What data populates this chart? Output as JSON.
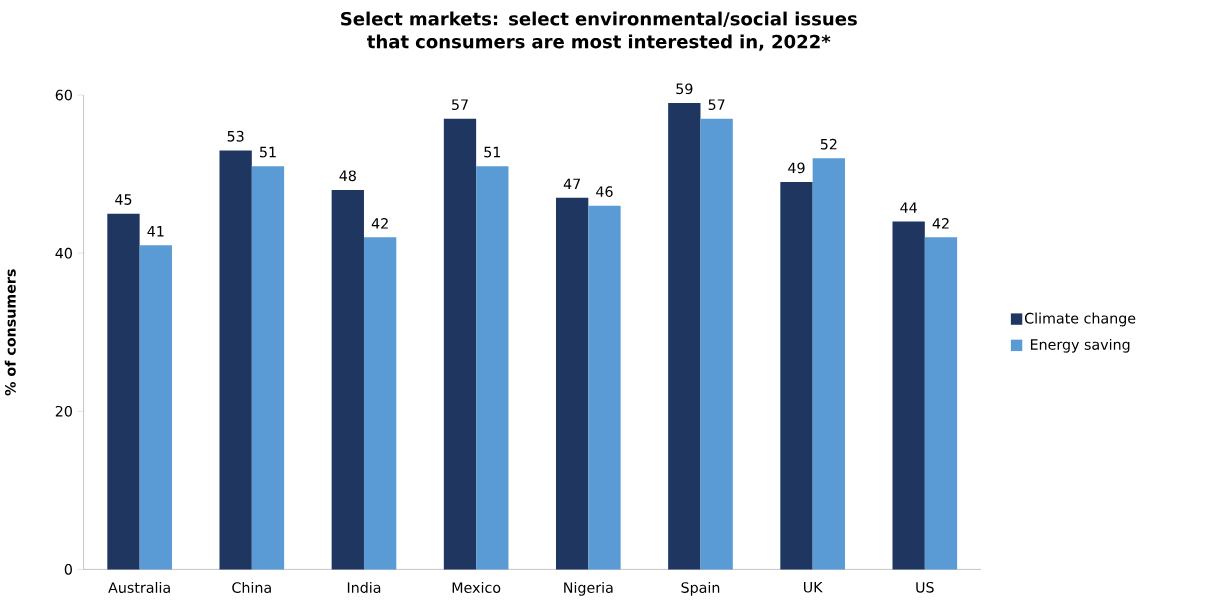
{
  "chart_data": {
    "type": "bar",
    "title": "Select markets: select environmental/social issues that consumers are most interested in, 2022*",
    "ylabel": "% of consumers",
    "categories": [
      "Australia",
      "China",
      "India",
      "Mexico",
      "Nigeria",
      "Spain",
      "UK",
      "US"
    ],
    "series": [
      {
        "name": "Climate change",
        "color": "#1f3660",
        "values": [
          45,
          53,
          48,
          57,
          47,
          59,
          49,
          44
        ]
      },
      {
        "name": "Energy saving",
        "color": "#5a9bd5",
        "values": [
          41,
          51,
          42,
          51,
          46,
          57,
          52,
          42
        ]
      }
    ],
    "ylim": [
      0,
      60
    ],
    "yticks": [
      0,
      20,
      40,
      60
    ],
    "legend": "right",
    "data_labels": true
  }
}
